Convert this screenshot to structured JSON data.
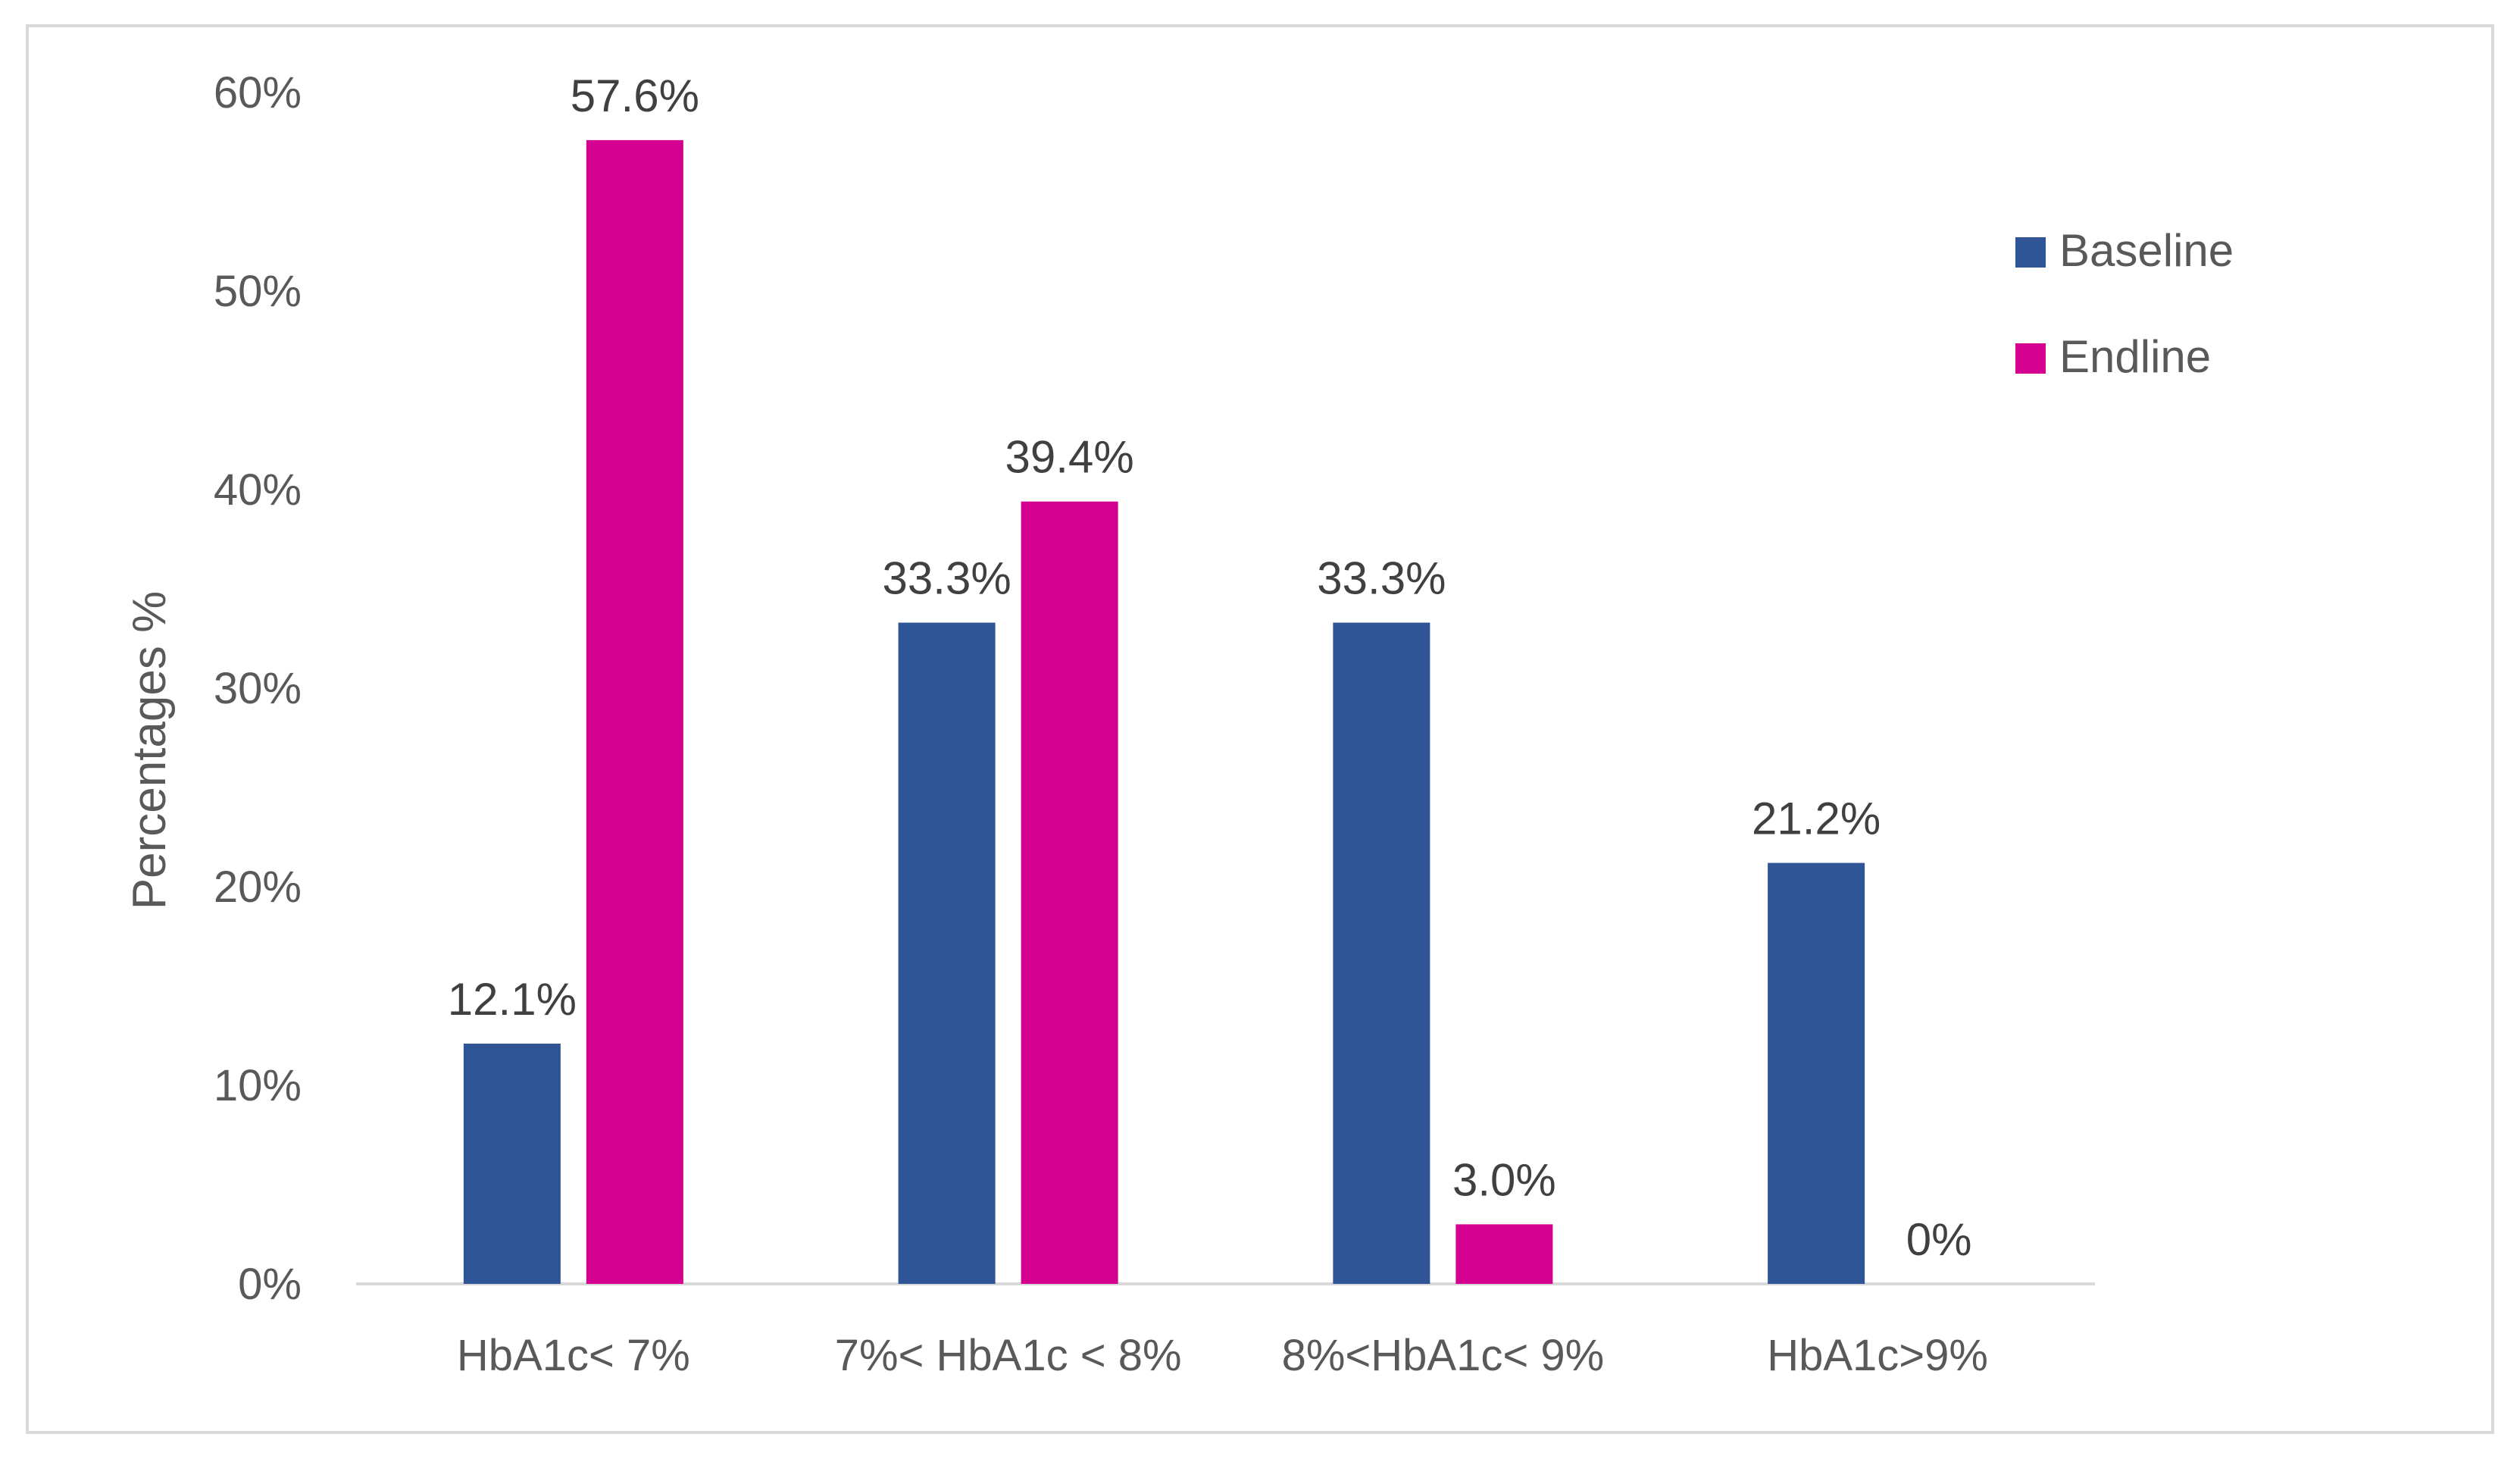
{
  "chart_data": {
    "type": "bar",
    "title": "",
    "xlabel": "",
    "ylabel": "Percentages  %",
    "ylim": [
      0,
      60
    ],
    "yticks": [
      "0%",
      "10%",
      "20%",
      "30%",
      "40%",
      "50%",
      "60%"
    ],
    "grid": false,
    "legend_position": "top-right",
    "categories": [
      "HbA1c< 7%",
      "7%< HbA1c < 8%",
      "8%<HbA1c< 9%",
      "HbA1c>9%"
    ],
    "series": [
      {
        "name": "Baseline",
        "color": "#2f5597",
        "values": [
          12.1,
          33.3,
          33.3,
          21.2
        ],
        "labels": [
          "12.1%",
          "33.3%",
          "33.3%",
          "21.2%"
        ]
      },
      {
        "name": "Endline",
        "color": "#d4008f",
        "values": [
          57.6,
          39.4,
          3.0,
          0
        ],
        "labels": [
          "57.6%",
          "39.4%",
          "3.0%",
          "0%"
        ]
      }
    ]
  }
}
